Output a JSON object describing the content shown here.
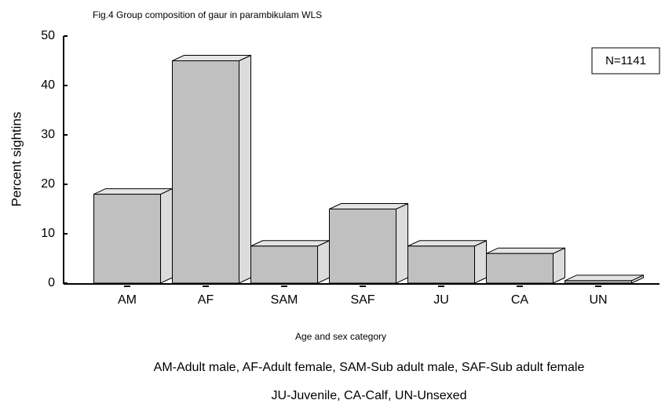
{
  "chart_data": {
    "type": "bar3d",
    "title": "Fig.4 Group composition of gaur in parambikulam WLS",
    "y_label": "Percent sightins",
    "x_label": "Age and sex category",
    "annotation": "N=1141",
    "notes": [
      "AM-Adult male, AF-Adult female, SAM-Sub adult male, SAF-Sub adult female",
      "JU-Juvenile, CA-Calf, UN-Unsexed"
    ],
    "categories": [
      "AM",
      "AF",
      "SAM",
      "SAF",
      "JU",
      "CA",
      "UN"
    ],
    "values": [
      18,
      45,
      7.5,
      15,
      7.5,
      6,
      0.5
    ],
    "color": "#c0c0c0",
    "ylim": [
      0,
      50
    ],
    "yticks": [
      0,
      10,
      20,
      30,
      40,
      50
    ],
    "grid": false
  }
}
